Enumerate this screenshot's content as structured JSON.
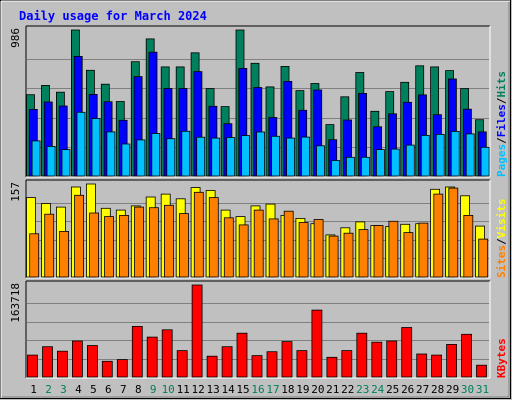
{
  "chart_data": {
    "type": "bar",
    "title": "Daily usage for March 2024",
    "categories": [
      "1",
      "2",
      "3",
      "4",
      "5",
      "6",
      "7",
      "8",
      "9",
      "10",
      "11",
      "12",
      "13",
      "14",
      "15",
      "16",
      "17",
      "18",
      "19",
      "20",
      "21",
      "22",
      "23",
      "24",
      "25",
      "26",
      "27",
      "28",
      "29",
      "30",
      "31"
    ],
    "weekend_days": [
      "2",
      "3",
      "9",
      "10",
      "16",
      "17",
      "23",
      "24",
      "30",
      "31"
    ],
    "colors": {
      "hits": "#00805c",
      "files": "#0000ff",
      "pages": "#00c0ff",
      "visits": "#ffff00",
      "sites": "#ff8000",
      "kbytes": "#ff0000",
      "weekend_label": "#00805c",
      "weekday_label": "#000000",
      "title": "#0000ff",
      "panel_bg": "#c0c0c0"
    },
    "panels": [
      {
        "id": "requests",
        "ymax_label": "986",
        "ymax": 986,
        "legend": [
          {
            "text": "Pages",
            "color": "#00c0ff"
          },
          {
            "text": "/",
            "color": "#000000"
          },
          {
            "text": "Files",
            "color": "#0000ff"
          },
          {
            "text": "/",
            "color": "#000000"
          },
          {
            "text": "Hits",
            "color": "#00805c"
          }
        ],
        "series": [
          {
            "name": "Hits",
            "color": "#00805c",
            "values": [
              549,
              612,
              566,
              986,
              714,
              620,
              503,
              772,
              926,
              737,
              737,
              832,
              590,
              469,
              986,
              761,
              602,
              740,
              577,
              625,
              347,
              535,
              699,
              437,
              570,
              633,
              744,
              737,
              712,
              590,
              380
            ]
          },
          {
            "name": "Files",
            "color": "#0000ff",
            "values": [
              450,
              500,
              473,
              808,
              551,
              502,
              376,
              671,
              836,
              591,
              591,
              705,
              471,
              353,
              727,
              598,
              395,
              639,
              444,
              581,
              245,
              378,
              558,
              332,
              420,
              498,
              548,
              414,
              655,
              451,
              298
            ]
          },
          {
            "name": "Pages",
            "color": "#00c0ff",
            "values": [
              237,
              200,
              178,
              430,
              388,
              298,
              216,
              244,
              287,
              252,
              302,
              262,
              256,
              260,
              273,
              297,
              268,
              256,
              263,
              204,
              105,
              126,
              126,
              178,
              182,
              209,
              274,
              281,
              301,
              284,
              194
            ]
          }
        ]
      },
      {
        "id": "visitors",
        "ymax_label": "157",
        "ymax": 157,
        "legend": [
          {
            "text": "Sites",
            "color": "#ff8000"
          },
          {
            "text": "/",
            "color": "#000000"
          },
          {
            "text": "Visits",
            "color": "#ffff00"
          }
        ],
        "series": [
          {
            "name": "Visits",
            "color": "#ffff00",
            "values": [
              134,
              124,
              118,
              152,
              157,
              116,
              113,
              120,
              135,
              140,
              132,
              151,
              146,
              113,
              102,
              120,
              123,
              104,
              99,
              90,
              71,
              83,
              93,
              87,
              85,
              89,
              90,
              148,
              152,
              137,
              86
            ]
          },
          {
            "name": "Sites",
            "color": "#ff8000",
            "values": [
              73,
              106,
              77,
              138,
              108,
              102,
              104,
              118,
              117,
              121,
              107,
              143,
              134,
              100,
              88,
              113,
              98,
              111,
              92,
              97,
              69,
              74,
              80,
              87,
              94,
              75,
              91,
              140,
              150,
              104,
              64
            ]
          }
        ]
      },
      {
        "id": "traffic",
        "ymax_label": "163718",
        "ymax": 163718,
        "legend": [
          {
            "text": "KBytes",
            "color": "#ff0000"
          }
        ],
        "series": [
          {
            "name": "KBytes",
            "color": "#ff0000",
            "values": [
              39000,
              54000,
              46000,
              64000,
              56000,
              28000,
              31000,
              90000,
              71000,
              84000,
              47000,
              163718,
              37000,
              54000,
              78000,
              38000,
              45000,
              63000,
              47000,
              119000,
              35000,
              47000,
              78000,
              62000,
              64000,
              88000,
              41000,
              39000,
              58000,
              76000,
              21000
            ]
          }
        ]
      }
    ]
  }
}
